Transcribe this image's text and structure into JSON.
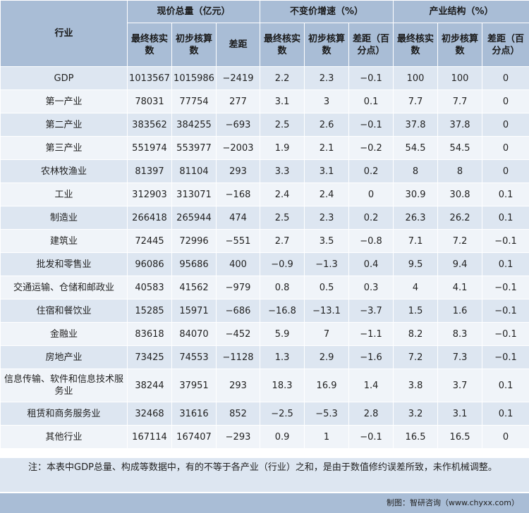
{
  "headers": {
    "industry": "行业",
    "groups": [
      "现价总量（亿元）",
      "不变价增速（%）",
      "产业结构（%）"
    ],
    "sub": [
      [
        "最终核实数",
        "初步核算数",
        "差距"
      ],
      [
        "最终核实数",
        "初步核算数",
        "差距（百分点）"
      ],
      [
        "最终核实数",
        "初步核算数",
        "差距（百分点）"
      ]
    ]
  },
  "rows": [
    [
      "GDP",
      "1013567",
      "1015986",
      "−2419",
      "2.2",
      "2.3",
      "−0.1",
      "100",
      "100",
      "0"
    ],
    [
      "第一产业",
      "78031",
      "77754",
      "277",
      "3.1",
      "3",
      "0.1",
      "7.7",
      "7.7",
      "0"
    ],
    [
      "第二产业",
      "383562",
      "384255",
      "−693",
      "2.5",
      "2.6",
      "−0.1",
      "37.8",
      "37.8",
      "0"
    ],
    [
      "第三产业",
      "551974",
      "553977",
      "−2003",
      "1.9",
      "2.1",
      "−0.2",
      "54.5",
      "54.5",
      "0"
    ],
    [
      "农林牧渔业",
      "81397",
      "81104",
      "293",
      "3.3",
      "3.1",
      "0.2",
      "8",
      "8",
      "0"
    ],
    [
      "工业",
      "312903",
      "313071",
      "−168",
      "2.4",
      "2.4",
      "0",
      "30.9",
      "30.8",
      "0.1"
    ],
    [
      "制造业",
      "266418",
      "265944",
      "474",
      "2.5",
      "2.3",
      "0.2",
      "26.3",
      "26.2",
      "0.1"
    ],
    [
      "建筑业",
      "72445",
      "72996",
      "−551",
      "2.7",
      "3.5",
      "−0.8",
      "7.1",
      "7.2",
      "−0.1"
    ],
    [
      "批发和零售业",
      "96086",
      "95686",
      "400",
      "−0.9",
      "−1.3",
      "0.4",
      "9.5",
      "9.4",
      "0.1"
    ],
    [
      "交通运输、仓储和邮政业",
      "40583",
      "41562",
      "−979",
      "0.8",
      "0.5",
      "0.3",
      "4",
      "4.1",
      "−0.1"
    ],
    [
      "住宿和餐饮业",
      "15285",
      "15971",
      "−686",
      "−16.8",
      "−13.1",
      "−3.7",
      "1.5",
      "1.6",
      "−0.1"
    ],
    [
      "金融业",
      "83618",
      "84070",
      "−452",
      "5.9",
      "7",
      "−1.1",
      "8.2",
      "8.3",
      "−0.1"
    ],
    [
      "房地产业",
      "73425",
      "74553",
      "−1128",
      "1.3",
      "2.9",
      "−1.6",
      "7.2",
      "7.3",
      "−0.1"
    ],
    [
      "信息传输、软件和信息技术服务业",
      "38244",
      "37951",
      "293",
      "18.3",
      "16.9",
      "1.4",
      "3.8",
      "3.7",
      "0.1"
    ],
    [
      "租赁和商务服务业",
      "32468",
      "31616",
      "852",
      "−2.5",
      "−5.3",
      "2.8",
      "3.2",
      "3.1",
      "0.1"
    ],
    [
      "其他行业",
      "167114",
      "167407",
      "−293",
      "0.9",
      "1",
      "−0.1",
      "16.5",
      "16.5",
      "0"
    ]
  ],
  "note": "注：本表中GDP总量、构成等数据中，有的不等于各产业（行业）之和，是由于数值修约误差所致，未作机械调整。",
  "footer": "制图：智研咨询（www.chyxx.com）"
}
